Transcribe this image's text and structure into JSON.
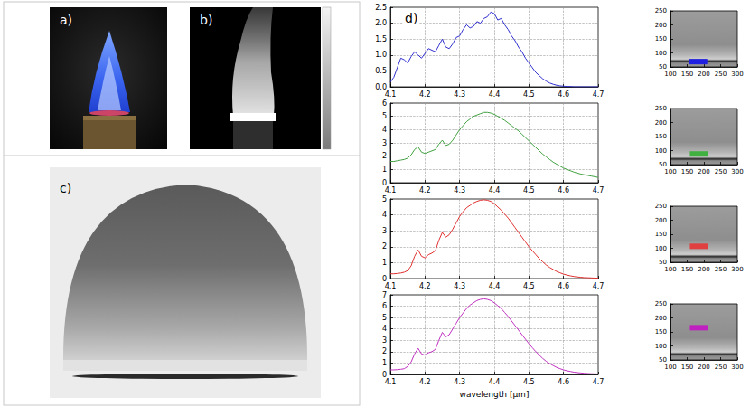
{
  "panels": {
    "a": {
      "label": "a)"
    },
    "b": {
      "label": "b)"
    },
    "c": {
      "label": "c)"
    },
    "d": {
      "label": "d)"
    }
  },
  "chart_data": [
    {
      "type": "line",
      "color": "#3030d0",
      "grid": true,
      "x": [
        4.1,
        4.11,
        4.12,
        4.13,
        4.14,
        4.15,
        4.16,
        4.17,
        4.18,
        4.19,
        4.2,
        4.21,
        4.22,
        4.23,
        4.24,
        4.25,
        4.26,
        4.27,
        4.28,
        4.29,
        4.3,
        4.31,
        4.32,
        4.33,
        4.34,
        4.35,
        4.36,
        4.37,
        4.38,
        4.39,
        4.4,
        4.41,
        4.42,
        4.43,
        4.44,
        4.45,
        4.46,
        4.47,
        4.48,
        4.49,
        4.5,
        4.51,
        4.52,
        4.53,
        4.54,
        4.55,
        4.56,
        4.57,
        4.58,
        4.59,
        4.6,
        4.61,
        4.62,
        4.63,
        4.64,
        4.65,
        4.66,
        4.67,
        4.68,
        4.69,
        4.7
      ],
      "values": [
        0.15,
        0.3,
        0.6,
        0.9,
        0.85,
        0.75,
        0.95,
        1.1,
        1.0,
        0.9,
        1.05,
        1.2,
        1.15,
        1.1,
        1.3,
        1.5,
        1.25,
        1.2,
        1.35,
        1.55,
        1.6,
        1.8,
        1.95,
        1.85,
        1.9,
        2.05,
        2.0,
        2.15,
        2.2,
        2.35,
        2.3,
        2.1,
        2.15,
        1.95,
        1.8,
        1.6,
        1.45,
        1.25,
        1.1,
        0.9,
        0.75,
        0.6,
        0.45,
        0.35,
        0.25,
        0.18,
        0.12,
        0.08,
        0.05,
        0.03,
        0.02,
        0.01,
        0.01,
        0,
        0,
        0,
        0,
        0,
        0,
        0,
        0
      ],
      "xlim": [
        4.1,
        4.7
      ],
      "xticks": [
        4.1,
        4.2,
        4.3,
        4.4,
        4.5,
        4.6,
        4.7
      ],
      "ylim": [
        0,
        2.5
      ],
      "yticks": [
        {
          "value": 0,
          "label": "0.0"
        },
        0.5,
        {
          "value": 1,
          "label": "1.0"
        },
        1.5,
        {
          "value": 2,
          "label": "2.0"
        },
        2.5
      ]
    },
    {
      "type": "line",
      "color": "#40a040",
      "grid": true,
      "x": [
        4.1,
        4.11,
        4.12,
        4.13,
        4.14,
        4.15,
        4.16,
        4.17,
        4.18,
        4.19,
        4.2,
        4.21,
        4.22,
        4.23,
        4.24,
        4.25,
        4.26,
        4.27,
        4.28,
        4.29,
        4.3,
        4.31,
        4.32,
        4.33,
        4.34,
        4.35,
        4.36,
        4.37,
        4.38,
        4.39,
        4.4,
        4.41,
        4.42,
        4.43,
        4.44,
        4.45,
        4.46,
        4.47,
        4.48,
        4.49,
        4.5,
        4.51,
        4.52,
        4.53,
        4.54,
        4.55,
        4.56,
        4.57,
        4.58,
        4.59,
        4.6,
        4.61,
        4.62,
        4.63,
        4.64,
        4.65,
        4.66,
        4.67,
        4.68,
        4.69,
        4.7
      ],
      "values": [
        1.6,
        1.6,
        1.65,
        1.7,
        1.75,
        1.85,
        2.1,
        2.5,
        2.7,
        2.3,
        2.2,
        2.3,
        2.4,
        2.5,
        2.9,
        3.2,
        2.8,
        2.9,
        3.2,
        3.6,
        4.0,
        4.3,
        4.6,
        4.8,
        5.0,
        5.1,
        5.2,
        5.3,
        5.3,
        5.25,
        5.15,
        5.0,
        4.85,
        4.7,
        4.5,
        4.3,
        4.1,
        3.9,
        3.65,
        3.4,
        3.15,
        2.9,
        2.65,
        2.4,
        2.15,
        1.95,
        1.75,
        1.55,
        1.4,
        1.25,
        1.1,
        1.0,
        0.9,
        0.8,
        0.72,
        0.65,
        0.6,
        0.55,
        0.5,
        0.45,
        0.4
      ],
      "xlim": [
        4.1,
        4.7
      ],
      "xticks": [
        4.1,
        4.2,
        4.3,
        4.4,
        4.5,
        4.6,
        4.7
      ],
      "ylim": [
        0,
        6
      ],
      "yticks": [
        0,
        1,
        2,
        3,
        4,
        5,
        6
      ]
    },
    {
      "type": "line",
      "color": "#e03030",
      "grid": true,
      "x": [
        4.1,
        4.11,
        4.12,
        4.13,
        4.14,
        4.15,
        4.16,
        4.17,
        4.18,
        4.19,
        4.2,
        4.21,
        4.22,
        4.23,
        4.24,
        4.25,
        4.26,
        4.27,
        4.28,
        4.29,
        4.3,
        4.31,
        4.32,
        4.33,
        4.34,
        4.35,
        4.36,
        4.37,
        4.38,
        4.39,
        4.4,
        4.41,
        4.42,
        4.43,
        4.44,
        4.45,
        4.46,
        4.47,
        4.48,
        4.49,
        4.5,
        4.51,
        4.52,
        4.53,
        4.54,
        4.55,
        4.56,
        4.57,
        4.58,
        4.59,
        4.6,
        4.61,
        4.62,
        4.63,
        4.64,
        4.65,
        4.66,
        4.67,
        4.68,
        4.69,
        4.7
      ],
      "values": [
        0.3,
        0.3,
        0.32,
        0.35,
        0.4,
        0.5,
        0.8,
        1.4,
        1.8,
        1.4,
        1.3,
        1.5,
        1.6,
        1.75,
        2.4,
        2.9,
        2.6,
        2.75,
        3.1,
        3.5,
        3.9,
        4.2,
        4.45,
        4.6,
        4.75,
        4.85,
        4.92,
        4.95,
        4.92,
        4.85,
        4.7,
        4.5,
        4.3,
        4.05,
        3.8,
        3.5,
        3.2,
        2.9,
        2.6,
        2.3,
        2.0,
        1.75,
        1.5,
        1.25,
        1.05,
        0.85,
        0.7,
        0.57,
        0.45,
        0.36,
        0.28,
        0.22,
        0.17,
        0.13,
        0.1,
        0.08,
        0.06,
        0.05,
        0.04,
        0.03,
        0.02
      ],
      "xlim": [
        4.1,
        4.7
      ],
      "xticks": [
        4.1,
        4.2,
        4.3,
        4.4,
        4.5,
        4.6,
        4.7
      ],
      "ylim": [
        0,
        5
      ],
      "yticks": [
        0,
        1,
        2,
        3,
        4,
        5
      ]
    },
    {
      "type": "line",
      "color": "#c030c0",
      "grid": true,
      "xlabel": "wavelength [μm]",
      "x": [
        4.1,
        4.11,
        4.12,
        4.13,
        4.14,
        4.15,
        4.16,
        4.17,
        4.18,
        4.19,
        4.2,
        4.21,
        4.22,
        4.23,
        4.24,
        4.25,
        4.26,
        4.27,
        4.28,
        4.29,
        4.3,
        4.31,
        4.32,
        4.33,
        4.34,
        4.35,
        4.36,
        4.37,
        4.38,
        4.39,
        4.4,
        4.41,
        4.42,
        4.43,
        4.44,
        4.45,
        4.46,
        4.47,
        4.48,
        4.49,
        4.5,
        4.51,
        4.52,
        4.53,
        4.54,
        4.55,
        4.56,
        4.57,
        4.58,
        4.59,
        4.6,
        4.61,
        4.62,
        4.63,
        4.64,
        4.65,
        4.66,
        4.67,
        4.68,
        4.69,
        4.7
      ],
      "values": [
        0.4,
        0.4,
        0.42,
        0.45,
        0.5,
        0.7,
        1.1,
        1.8,
        2.3,
        1.8,
        1.7,
        1.9,
        2.0,
        2.2,
        3.0,
        3.7,
        3.3,
        3.5,
        4.0,
        4.5,
        5.0,
        5.4,
        5.8,
        6.1,
        6.3,
        6.5,
        6.6,
        6.65,
        6.6,
        6.5,
        6.3,
        6.05,
        5.8,
        5.45,
        5.1,
        4.7,
        4.3,
        3.9,
        3.5,
        3.1,
        2.7,
        2.35,
        2.0,
        1.7,
        1.4,
        1.15,
        0.95,
        0.78,
        0.62,
        0.5,
        0.4,
        0.32,
        0.26,
        0.2,
        0.16,
        0.13,
        0.1,
        0.08,
        0.06,
        0.05,
        0.04
      ],
      "xlim": [
        4.1,
        4.7
      ],
      "xticks": [
        4.1,
        4.2,
        4.3,
        4.4,
        4.5,
        4.6,
        4.7
      ],
      "ylim": [
        0,
        7
      ],
      "yticks": [
        0,
        1,
        2,
        3,
        4,
        5,
        6,
        7
      ]
    },
    {
      "type": "scatter",
      "color": "#2020e0",
      "marker": "s",
      "grid": false,
      "x": [
        183
      ],
      "values": [
        69
      ],
      "xlim": [
        100,
        300
      ],
      "xticks": [
        100,
        150,
        200,
        250,
        300
      ],
      "ylim": [
        50,
        250
      ],
      "yticks": [
        50,
        100,
        150,
        200,
        250
      ]
    },
    {
      "type": "scatter",
      "color": "#40b040",
      "marker": "s",
      "grid": false,
      "x": [
        185
      ],
      "values": [
        88
      ],
      "xlim": [
        100,
        300
      ],
      "xticks": [
        100,
        150,
        200,
        250,
        300
      ],
      "ylim": [
        50,
        250
      ],
      "yticks": [
        50,
        100,
        150,
        200,
        250
      ]
    },
    {
      "type": "scatter",
      "color": "#e04040",
      "marker": "s",
      "grid": false,
      "x": [
        185
      ],
      "values": [
        107
      ],
      "xlim": [
        100,
        300
      ],
      "xticks": [
        100,
        150,
        200,
        250,
        300
      ],
      "ylim": [
        50,
        250
      ],
      "yticks": [
        50,
        100,
        150,
        200,
        250
      ]
    },
    {
      "type": "scatter",
      "color": "#c020c0",
      "marker": "s",
      "grid": false,
      "x": [
        185
      ],
      "values": [
        165
      ],
      "xlim": [
        100,
        300
      ],
      "xticks": [
        100,
        150,
        200,
        250,
        300
      ],
      "ylim": [
        50,
        250
      ],
      "yticks": [
        50,
        100,
        150,
        200,
        250
      ]
    }
  ]
}
